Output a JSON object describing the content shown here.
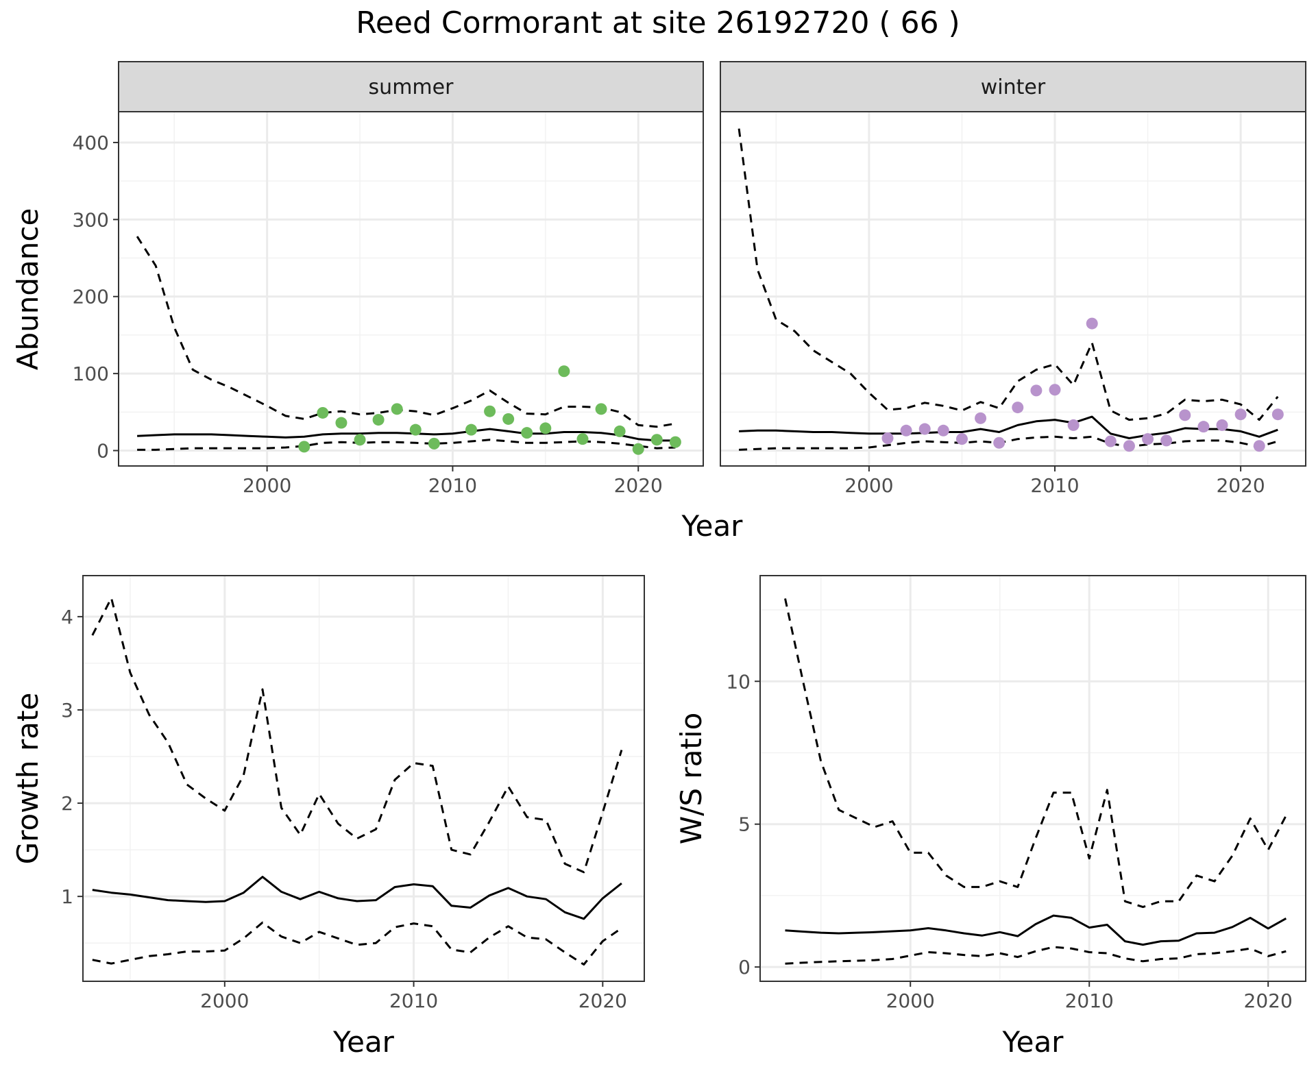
{
  "title": "Reed Cormorant at site 26192720 ( 66 )",
  "chart_data": [
    {
      "type": "line",
      "panel": "abundance",
      "facets": [
        "summer",
        "winter"
      ],
      "xlabel": "Year",
      "ylabel": "Abundance",
      "xlim": [
        1992,
        2023.5
      ],
      "ylim": [
        -20,
        440
      ],
      "xticks": [
        2000,
        2010,
        2020
      ],
      "yticks": [
        0,
        100,
        200,
        300,
        400
      ],
      "grid": true,
      "point_colors": {
        "summer": "#6dbb5b",
        "winter": "#b893cc"
      },
      "series": {
        "summer": {
          "years": [
            1993,
            1994,
            1995,
            1996,
            1997,
            1998,
            1999,
            2000,
            2001,
            2002,
            2003,
            2004,
            2005,
            2006,
            2007,
            2008,
            2009,
            2010,
            2011,
            2012,
            2013,
            2014,
            2015,
            2016,
            2017,
            2018,
            2019,
            2020,
            2021,
            2022
          ],
          "mean": [
            19,
            20,
            21,
            21,
            21,
            20,
            19,
            18,
            17,
            18,
            21,
            22,
            22,
            23,
            23,
            22,
            21,
            22,
            25,
            28,
            25,
            22,
            22,
            24,
            24,
            23,
            20,
            15,
            13,
            13
          ],
          "upper": [
            278,
            240,
            160,
            105,
            92,
            82,
            70,
            58,
            45,
            41,
            49,
            51,
            47,
            49,
            53,
            51,
            46,
            55,
            65,
            78,
            62,
            48,
            47,
            57,
            57,
            56,
            50,
            33,
            31,
            35
          ],
          "lower": [
            1,
            1,
            2,
            3,
            3,
            3,
            3,
            3,
            4,
            6,
            10,
            11,
            10,
            11,
            11,
            10,
            9,
            10,
            12,
            14,
            12,
            10,
            10,
            11,
            12,
            11,
            9,
            6,
            3,
            4
          ],
          "points_x": [
            2002,
            2003,
            2004,
            2005,
            2006,
            2007,
            2008,
            2009,
            2011,
            2012,
            2013,
            2014,
            2015,
            2016,
            2017,
            2018,
            2019,
            2020,
            2021,
            2022
          ],
          "points_y": [
            5,
            49,
            36,
            14,
            40,
            54,
            27,
            9,
            27,
            51,
            41,
            23,
            29,
            103,
            15,
            54,
            25,
            2,
            14,
            11
          ]
        },
        "winter": {
          "years": [
            1993,
            1994,
            1995,
            1996,
            1997,
            1998,
            1999,
            2000,
            2001,
            2002,
            2003,
            2004,
            2005,
            2006,
            2007,
            2008,
            2009,
            2010,
            2011,
            2012,
            2013,
            2014,
            2015,
            2016,
            2017,
            2018,
            2019,
            2020,
            2021,
            2022
          ],
          "mean": [
            25,
            26,
            26,
            25,
            24,
            24,
            23,
            22,
            22,
            22,
            23,
            24,
            24,
            28,
            24,
            33,
            38,
            40,
            36,
            44,
            22,
            16,
            20,
            23,
            29,
            28,
            28,
            25,
            18,
            27
          ],
          "upper": [
            418,
            235,
            170,
            155,
            130,
            115,
            100,
            75,
            53,
            55,
            62,
            58,
            52,
            63,
            55,
            90,
            105,
            112,
            85,
            140,
            52,
            40,
            42,
            48,
            66,
            64,
            66,
            60,
            40,
            70
          ],
          "lower": [
            1,
            2,
            3,
            3,
            3,
            3,
            3,
            4,
            7,
            10,
            12,
            11,
            10,
            12,
            10,
            15,
            17,
            18,
            16,
            18,
            9,
            5,
            8,
            9,
            12,
            13,
            13,
            10,
            5,
            12
          ],
          "points_x": [
            2001,
            2002,
            2003,
            2004,
            2005,
            2006,
            2007,
            2008,
            2009,
            2010,
            2011,
            2012,
            2013,
            2014,
            2015,
            2016,
            2017,
            2018,
            2019,
            2020,
            2021,
            2022
          ],
          "points_y": [
            16,
            26,
            28,
            26,
            15,
            42,
            10,
            56,
            78,
            79,
            33,
            165,
            12,
            6,
            15,
            13,
            46,
            31,
            33,
            47,
            6,
            47
          ]
        }
      }
    },
    {
      "type": "line",
      "panel": "growth",
      "xlabel": "Year",
      "ylabel": "Growth rate",
      "xlim": [
        1992.5,
        2022.2
      ],
      "ylim": [
        0.09,
        4.44
      ],
      "xticks": [
        2000,
        2010,
        2020
      ],
      "yticks": [
        1,
        2,
        3,
        4
      ],
      "grid": true,
      "series": {
        "years": [
          1993,
          1994,
          1995,
          1996,
          1997,
          1998,
          1999,
          2000,
          2001,
          2002,
          2003,
          2004,
          2005,
          2006,
          2007,
          2008,
          2009,
          2010,
          2011,
          2012,
          2013,
          2014,
          2015,
          2016,
          2017,
          2018,
          2019,
          2020,
          2021
        ],
        "mean": [
          1.07,
          1.04,
          1.02,
          0.99,
          0.96,
          0.95,
          0.94,
          0.95,
          1.04,
          1.21,
          1.05,
          0.97,
          1.05,
          0.98,
          0.95,
          0.96,
          1.1,
          1.13,
          1.11,
          0.9,
          0.88,
          1.01,
          1.09,
          1.0,
          0.97,
          0.83,
          0.76,
          0.98,
          1.14
        ],
        "upper": [
          3.8,
          4.2,
          3.4,
          2.95,
          2.65,
          2.2,
          2.05,
          1.92,
          2.3,
          3.22,
          1.95,
          1.66,
          2.1,
          1.78,
          1.62,
          1.72,
          2.25,
          2.43,
          2.4,
          1.5,
          1.45,
          1.8,
          2.18,
          1.85,
          1.82,
          1.35,
          1.26,
          1.9,
          2.57
        ],
        "lower": [
          0.32,
          0.28,
          0.32,
          0.36,
          0.38,
          0.41,
          0.41,
          0.42,
          0.55,
          0.72,
          0.57,
          0.5,
          0.62,
          0.55,
          0.48,
          0.5,
          0.67,
          0.71,
          0.68,
          0.43,
          0.4,
          0.56,
          0.68,
          0.56,
          0.54,
          0.4,
          0.27,
          0.52,
          0.66
        ]
      }
    },
    {
      "type": "line",
      "panel": "ratio",
      "xlabel": "Year",
      "ylabel": "W/S ratio",
      "xlim": [
        1991.6,
        2022.1
      ],
      "ylim": [
        -0.5,
        13.7
      ],
      "xticks": [
        2000,
        2010,
        2020
      ],
      "yticks": [
        0,
        5,
        10
      ],
      "grid": true,
      "series": {
        "years": [
          1993,
          1994,
          1995,
          1996,
          1997,
          1998,
          1999,
          2000,
          2001,
          2002,
          2003,
          2004,
          2005,
          2006,
          2007,
          2008,
          2009,
          2010,
          2011,
          2012,
          2013,
          2014,
          2015,
          2016,
          2017,
          2018,
          2019,
          2020,
          2021
        ],
        "mean": [
          1.28,
          1.24,
          1.2,
          1.18,
          1.2,
          1.22,
          1.25,
          1.28,
          1.36,
          1.28,
          1.18,
          1.1,
          1.22,
          1.08,
          1.5,
          1.8,
          1.72,
          1.38,
          1.48,
          0.9,
          0.78,
          0.9,
          0.92,
          1.18,
          1.2,
          1.4,
          1.72,
          1.35,
          1.7
        ],
        "upper": [
          12.9,
          10.0,
          7.2,
          5.5,
          5.2,
          4.9,
          5.1,
          4.0,
          4.0,
          3.2,
          2.8,
          2.8,
          3.0,
          2.8,
          4.5,
          6.1,
          6.1,
          3.8,
          6.2,
          2.3,
          2.1,
          2.3,
          2.3,
          3.2,
          3.0,
          3.9,
          5.2,
          4.1,
          5.3
        ],
        "lower": [
          0.12,
          0.15,
          0.18,
          0.2,
          0.22,
          0.24,
          0.28,
          0.4,
          0.52,
          0.48,
          0.42,
          0.38,
          0.48,
          0.35,
          0.55,
          0.7,
          0.65,
          0.52,
          0.48,
          0.3,
          0.2,
          0.28,
          0.3,
          0.45,
          0.48,
          0.55,
          0.65,
          0.38,
          0.55
        ]
      }
    }
  ]
}
